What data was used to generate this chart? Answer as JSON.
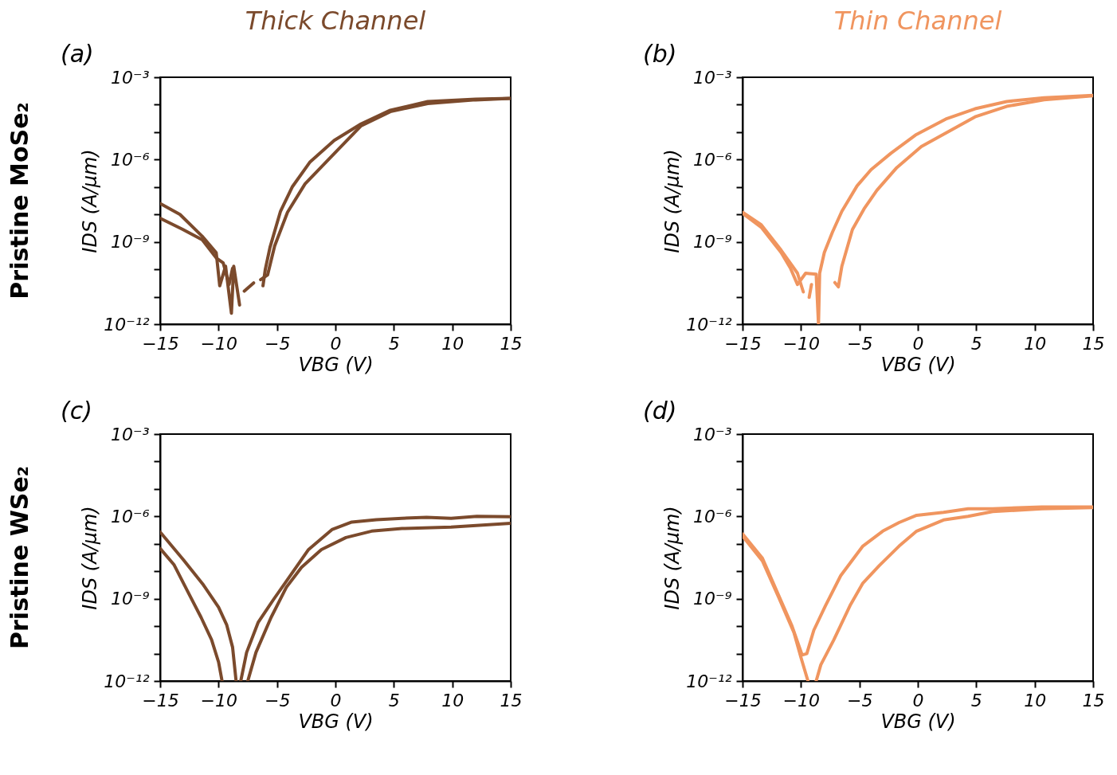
{
  "chart_data": [
    {
      "type": "line",
      "title": "Thick Channel",
      "xlabel": "VBG (V)",
      "ylabel": "IDS (A/μm)",
      "annotations": [
        "(a)",
        "Pristine MoSe₂"
      ],
      "log": "y",
      "grid": false,
      "xlim": [
        -15,
        15
      ],
      "xticks": [
        -15,
        -10,
        -5,
        0,
        5,
        10,
        15
      ],
      "ylim": [
        1e-12,
        0.001
      ],
      "yticks": [
        {
          "value": 1e-12,
          "label": "10⁻¹²"
        },
        {
          "value": 1e-11,
          "label": null
        },
        {
          "value": 1e-10,
          "label": null
        },
        {
          "value": 1e-09,
          "label": "10⁻⁹"
        },
        {
          "value": 1e-08,
          "label": null
        },
        {
          "value": 1e-07,
          "label": null
        },
        {
          "value": 1e-06,
          "label": "10⁻⁶"
        },
        {
          "value": 1e-05,
          "label": null
        },
        {
          "value": 0.0001,
          "label": null
        },
        {
          "value": 0.001,
          "label": "10⁻³"
        }
      ],
      "series": [
        {
          "color": "#7b4a2c",
          "x": [
            -15,
            -13.3,
            -11.4,
            -10.2,
            -9.9,
            -9.4,
            -8.9,
            -8.7,
            -8.2,
            -8.0,
            -7.8,
            -7.0,
            -6.6,
            -6.2,
            -6.0,
            -5.6,
            -4.7,
            -3.7,
            -2.2,
            -0.1,
            2.2,
            4.7,
            7.9,
            12,
            15
          ],
          "values": [
            2.5e-08,
            1e-08,
            1.6e-09,
            4e-10,
            2.5e-11,
            1.3e-10,
            2.5e-12,
            1.3e-10,
            5e-12,
            null,
            1.6e-11,
            3.2e-11,
            null,
            2.5e-11,
            1e-10,
            6.3e-10,
            1.3e-08,
            1e-07,
            7.9e-07,
            5e-06,
            2e-05,
            6.3e-05,
            0.00013,
            0.00016,
            0.00017
          ]
        },
        {
          "color": "#7b4a2c",
          "x": [
            -15,
            -13.1,
            -11.4,
            -10.2,
            -9.6,
            -9.1,
            -8.8,
            -7.5,
            -6.4,
            -5.8,
            -5.2,
            -4.1,
            -2.6,
            -0.5,
            2.2,
            4.7,
            7.9,
            12,
            15
          ],
          "values": [
            7.2e-09,
            2.9e-09,
            1.2e-09,
            2.6e-10,
            1.7e-10,
            2.8e-11,
            1.1e-10,
            null,
            4.2e-11,
            6.3e-11,
            7.1e-10,
            1.2e-08,
            1.3e-07,
            1.1e-06,
            1.7e-05,
            5.6e-05,
            0.00011,
            0.00015,
            0.00017
          ]
        }
      ]
    },
    {
      "type": "line",
      "title": "Thin Channel",
      "xlabel": "VBG (V)",
      "ylabel": "IDS (A/μm)",
      "annotations": [
        "(b)"
      ],
      "log": "y",
      "grid": false,
      "xlim": [
        -15,
        15
      ],
      "xticks": [
        -15,
        -10,
        -5,
        0,
        5,
        10,
        15
      ],
      "ylim": [
        1e-12,
        0.001
      ],
      "yticks": [
        {
          "value": 1e-12,
          "label": "10⁻¹²"
        },
        {
          "value": 1e-11,
          "label": null
        },
        {
          "value": 1e-10,
          "label": null
        },
        {
          "value": 1e-09,
          "label": "10⁻⁹"
        },
        {
          "value": 1e-08,
          "label": null
        },
        {
          "value": 1e-07,
          "label": null
        },
        {
          "value": 1e-06,
          "label": "10⁻⁶"
        },
        {
          "value": 1e-05,
          "label": null
        },
        {
          "value": 0.0001,
          "label": null
        },
        {
          "value": 0.001,
          "label": "10⁻³"
        }
      ],
      "series": [
        {
          "color": "#f0955f",
          "x": [
            -15,
            -13.4,
            -11.7,
            -10.9,
            -10.3,
            -9.6,
            -8.7,
            -8.5,
            -8.4,
            -8.0,
            -7.3,
            -6.5,
            -5.2,
            -4.0,
            -2.3,
            -0.2,
            2.4,
            4.9,
            7.6,
            10.8,
            15
          ],
          "values": [
            1.1e-08,
            3.4e-09,
            4.1e-10,
            1.1e-10,
            2.8e-11,
            7.2e-11,
            6.6e-11,
            1e-12,
            7.2e-11,
            4.1e-10,
            2.3e-09,
            1.3e-08,
            1.1e-07,
            4.3e-07,
            1.7e-06,
            7.8e-06,
            3e-05,
            7.1e-05,
            0.00013,
            0.00018,
            0.00022
          ]
        },
        {
          "color": "#f0955f",
          "x": [
            -15,
            -13.4,
            -11.7,
            -10.3,
            -9.8,
            -9.7,
            -9.3,
            -9.1,
            -8.0,
            -7.1,
            -6.8,
            -6.5,
            -5.6,
            -4.6,
            -3.5,
            -1.8,
            0.3,
            2.4,
            4.9,
            7.6,
            10.8,
            15
          ],
          "values": [
            1.2e-08,
            4.2e-09,
            5e-10,
            7.2e-11,
            1.5e-11,
            null,
            9.5e-12,
            2.8e-11,
            null,
            3.3e-11,
            2.3e-11,
            1.3e-10,
            2.8e-09,
            1.6e-08,
            7.6e-08,
            5.1e-07,
            3e-06,
            9.3e-06,
            3.6e-05,
            8.7e-05,
            0.00015,
            0.00021
          ]
        }
      ]
    },
    {
      "type": "line",
      "xlabel": "VBG (V)",
      "ylabel": "IDS (A/μm)",
      "annotations": [
        "(c)",
        "Pristine WSe₂"
      ],
      "log": "y",
      "grid": false,
      "xlim": [
        -15,
        15
      ],
      "xticks": [
        -15,
        -10,
        -5,
        0,
        5,
        10,
        15
      ],
      "ylim": [
        1e-12,
        0.001
      ],
      "yticks": [
        {
          "value": 1e-12,
          "label": "10⁻¹²"
        },
        {
          "value": 1e-11,
          "label": null
        },
        {
          "value": 1e-10,
          "label": null
        },
        {
          "value": 1e-09,
          "label": "10⁻⁹"
        },
        {
          "value": 1e-08,
          "label": null
        },
        {
          "value": 1e-07,
          "label": null
        },
        {
          "value": 1e-06,
          "label": "10⁻⁶"
        },
        {
          "value": 1e-05,
          "label": null
        },
        {
          "value": 0.0001,
          "label": null
        },
        {
          "value": 0.001,
          "label": "10⁻³"
        }
      ],
      "series": [
        {
          "color": "#7b4a2c",
          "x": [
            -15,
            -13,
            -11.3,
            -10,
            -9.3,
            -8.8,
            -8.5,
            -8.3,
            -8.1,
            -7.6,
            -6.6,
            -5.3,
            -3.8,
            -2.3,
            -0.3,
            1.4,
            3.5,
            5.7,
            7.8,
            9.9,
            12.1,
            15
          ],
          "values": [
            2.7e-07,
            2.6e-08,
            3.2e-09,
            4.9e-10,
            1.1e-10,
            1.7e-11,
            1e-12,
            null,
            1e-12,
            1.1e-11,
            1.4e-10,
            9.3e-10,
            7.6e-09,
            6.2e-08,
            3.3e-07,
            6.2e-07,
            7.6e-07,
            8.5e-07,
            9.3e-07,
            8.5e-07,
            1e-06,
            9.8e-07
          ]
        },
        {
          "color": "#7b4a2c",
          "x": [
            -15,
            -13.8,
            -12.5,
            -11.5,
            -10.6,
            -10,
            -9.7,
            -9,
            -7.5,
            -6.8,
            -5.5,
            -4.2,
            -2.9,
            -1.2,
            0.9,
            3.1,
            5.7,
            9.9,
            15
          ],
          "values": [
            6.8e-08,
            1.7e-08,
            1.4e-09,
            2.1e-10,
            3.2e-11,
            4.9e-12,
            1e-12,
            null,
            1e-12,
            1.1e-11,
            2.1e-10,
            2.6e-09,
            1.4e-08,
            6.2e-08,
            1.7e-07,
            2.9e-07,
            3.6e-07,
            4.1e-07,
            5.6e-07
          ]
        }
      ]
    },
    {
      "type": "line",
      "xlabel": "VBG (V)",
      "ylabel": "IDS (A/μm)",
      "annotations": [
        "(d)"
      ],
      "log": "y",
      "grid": false,
      "xlim": [
        -15,
        15
      ],
      "xticks": [
        -15,
        -10,
        -5,
        0,
        5,
        10,
        15
      ],
      "ylim": [
        1e-12,
        0.001
      ],
      "yticks": [
        {
          "value": 1e-12,
          "label": "10⁻¹²"
        },
        {
          "value": 1e-11,
          "label": null
        },
        {
          "value": 1e-10,
          "label": null
        },
        {
          "value": 1e-09,
          "label": "10⁻⁹"
        },
        {
          "value": 1e-08,
          "label": null
        },
        {
          "value": 1e-07,
          "label": null
        },
        {
          "value": 1e-06,
          "label": "10⁻⁶"
        },
        {
          "value": 1e-05,
          "label": null
        },
        {
          "value": 0.0001,
          "label": null
        },
        {
          "value": 0.001,
          "label": "10⁻³"
        }
      ],
      "series": [
        {
          "color": "#f0955f",
          "x": [
            -15,
            -13.3,
            -11.9,
            -10.8,
            -9.9,
            -9.5,
            -8.9,
            -7.9,
            -6.6,
            -4.7,
            -3,
            -1.6,
            -0.1,
            2.2,
            4.3,
            6.4,
            10.6,
            15
          ],
          "values": [
            2.3e-07,
            3e-08,
            1.3e-09,
            1.1e-10,
            8.9e-12,
            1e-11,
            7.1e-11,
            5.6e-10,
            6.9e-09,
            8.3e-08,
            2.9e-07,
            6e-07,
            1.1e-06,
            1.4e-06,
            1.9e-06,
            1.9e-06,
            2.2e-06,
            2.2e-06
          ]
        },
        {
          "color": "#f0955f",
          "x": [
            -15,
            -13.3,
            -11.9,
            -10.6,
            -10,
            -9.4,
            -9,
            -8.7,
            -8.3,
            -7.2,
            -5.8,
            -4.7,
            -3.3,
            -1.6,
            -0.1,
            2.2,
            4.3,
            6.4,
            10.6,
            15
          ],
          "values": [
            1.9e-07,
            2.4e-08,
            1.1e-09,
            5.8e-11,
            7.2e-12,
            1e-12,
            null,
            1e-12,
            3.9e-12,
            3.1e-11,
            5.6e-10,
            3.7e-09,
            1.6e-08,
            8.3e-08,
            2.9e-07,
            7.4e-07,
            1e-06,
            1.5e-06,
            1.9e-06,
            2.1e-06
          ]
        }
      ]
    }
  ]
}
